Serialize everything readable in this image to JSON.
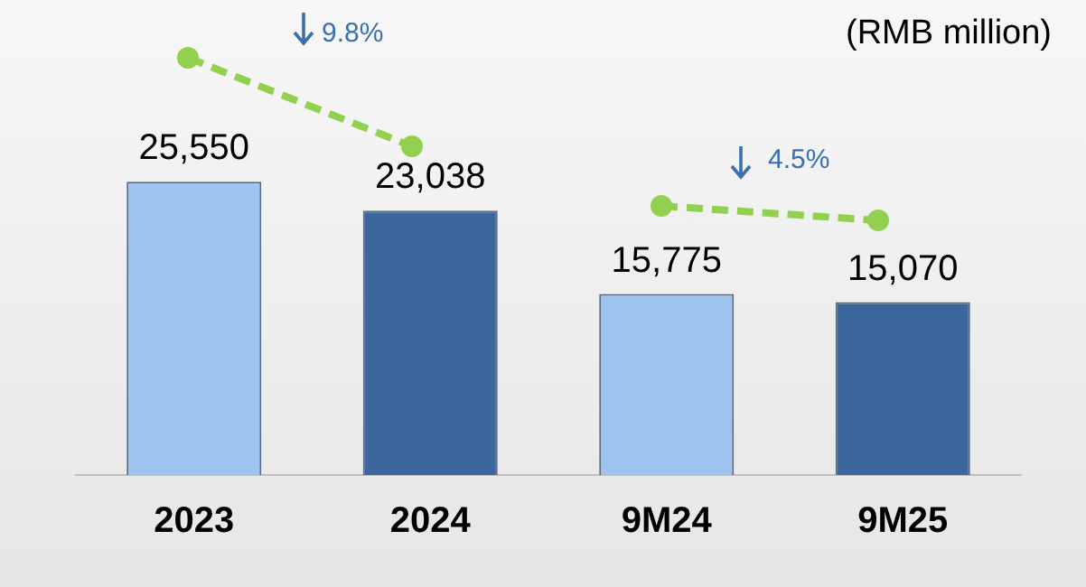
{
  "chart_data": {
    "type": "bar",
    "categories": [
      "2023",
      "2024",
      "9M24",
      "9M25"
    ],
    "values": [
      25550,
      23038,
      15775,
      15070
    ],
    "colors": [
      "#9ec3ee",
      "#3c679e",
      "#9ec3ee",
      "#3c679e"
    ],
    "value_labels": [
      "25,550",
      "23,038",
      "15,775",
      "15,070"
    ],
    "grid": false,
    "legend": false,
    "annotations": [
      "(RMB million)",
      "9.8%",
      "4.5%"
    ]
  }
}
